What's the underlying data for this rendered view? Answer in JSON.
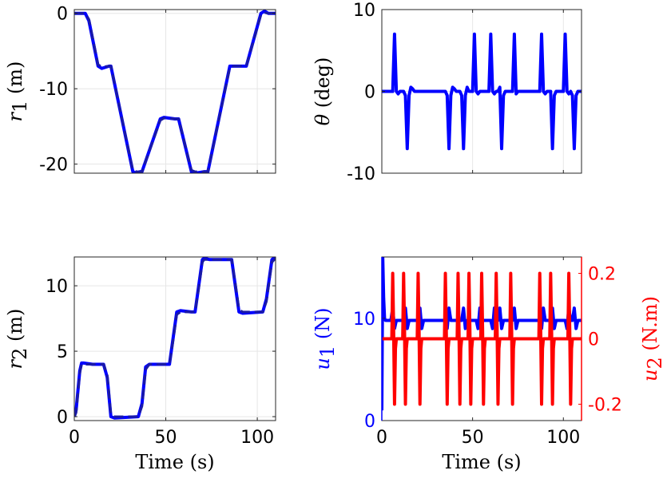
{
  "colors": {
    "primary": "#0000ff",
    "secondary": "#ff0000",
    "grid": "#e6e6e6",
    "axis": "#262626"
  },
  "chart_data": [
    {
      "id": "r1",
      "type": "line",
      "xlabel": "",
      "ylabel": {
        "sym": "r",
        "sub": "1",
        "unit": "(m)"
      },
      "xlim": [
        0,
        110
      ],
      "ylim": [
        -21.2,
        0.5
      ],
      "xticks": [
        0,
        50,
        100
      ],
      "xtick_labels_shown": false,
      "yticks": [
        -20,
        -10,
        0
      ],
      "ytick_labels": [
        "-20",
        "-10",
        "0"
      ],
      "grid": true,
      "series": [
        {
          "style": "solid",
          "x": [
            0,
            6,
            8,
            13,
            15,
            19,
            20,
            32,
            34,
            36,
            37,
            47,
            49,
            55,
            57,
            64,
            66,
            71,
            73,
            85,
            87,
            92,
            94,
            102,
            104,
            106,
            110
          ],
          "y": [
            0,
            0,
            -1,
            -7,
            -7.3,
            -7,
            -7,
            -21,
            -21.2,
            -21,
            -21,
            -14,
            -13.8,
            -14,
            -14,
            -21,
            -21.2,
            -21,
            -21,
            -7,
            -7,
            -7,
            -7,
            0,
            0.3,
            0,
            0
          ]
        },
        {
          "style": "dashed",
          "x": [
            0,
            6,
            8,
            13,
            15,
            19,
            20,
            32,
            34,
            36,
            37,
            47,
            49,
            55,
            57,
            64,
            66,
            71,
            73,
            85,
            87,
            92,
            94,
            102,
            104,
            106,
            110
          ],
          "y": [
            0,
            0,
            -0.8,
            -6.8,
            -7.1,
            -7,
            -7,
            -20.8,
            -21,
            -21,
            -21,
            -14.2,
            -13.9,
            -14,
            -14,
            -20.8,
            -21,
            -21,
            -21,
            -7.2,
            -7,
            -7,
            -7,
            -0.2,
            0.1,
            0,
            0
          ]
        }
      ]
    },
    {
      "id": "theta",
      "type": "line",
      "xlabel": "",
      "ylabel": {
        "sym": "θ",
        "sub": "",
        "unit": "(deg)"
      },
      "xlim": [
        0,
        110
      ],
      "ylim": [
        -10,
        10
      ],
      "xticks": [
        0,
        50,
        100
      ],
      "xtick_labels_shown": false,
      "yticks": [
        -10,
        0,
        10
      ],
      "ytick_labels": [
        "-10",
        "0",
        "10"
      ],
      "grid": true,
      "series": [
        {
          "style": "solid",
          "x": [
            0,
            6,
            7,
            8,
            9,
            10,
            11,
            12,
            13,
            14,
            15,
            16,
            17,
            18,
            19,
            20,
            35,
            36,
            37,
            38,
            39,
            40,
            41,
            42,
            43,
            44,
            45,
            46,
            47,
            48,
            49,
            50,
            51,
            52,
            53,
            54,
            55,
            56,
            57,
            58,
            59,
            60,
            61,
            62,
            63,
            64,
            65,
            66,
            67,
            68,
            69,
            70,
            71,
            72,
            73,
            74,
            75,
            76,
            77,
            87,
            88,
            89,
            90,
            91,
            92,
            93,
            94,
            95,
            96,
            97,
            98,
            99,
            100,
            101,
            102,
            103,
            104,
            105,
            106,
            107,
            108,
            110
          ],
          "y": [
            0,
            0,
            7,
            0,
            -0.3,
            0,
            0,
            0,
            -0.5,
            -7,
            -0.5,
            0.5,
            0.3,
            0,
            0,
            0,
            0,
            -0.5,
            -7,
            -0.5,
            0.5,
            0.3,
            0,
            0,
            0,
            -0.5,
            -7,
            -0.5,
            0.5,
            0,
            0,
            0,
            7,
            0,
            -0.3,
            0,
            0,
            0,
            0,
            0,
            0,
            7,
            0,
            -0.3,
            0,
            0,
            0.5,
            -7,
            -0.5,
            0,
            0,
            0,
            0,
            0,
            7,
            -0.3,
            0,
            0,
            0,
            0,
            7,
            0,
            -0.3,
            0,
            0,
            0,
            -7,
            -0.5,
            0,
            0,
            0,
            0,
            0,
            7,
            0,
            -0.3,
            0,
            -0.5,
            -7,
            -0.5,
            0,
            0
          ]
        }
      ]
    },
    {
      "id": "r2",
      "type": "line",
      "xlabel": "Time (s)",
      "ylabel": {
        "sym": "r",
        "sub": "2",
        "unit": "(m)"
      },
      "xlim": [
        0,
        110
      ],
      "ylim": [
        -0.3,
        12.2
      ],
      "xticks": [
        0,
        50,
        100
      ],
      "xtick_labels": [
        "0",
        "50",
        "100"
      ],
      "yticks": [
        0,
        5,
        10
      ],
      "ytick_labels": [
        "0",
        "5",
        "10"
      ],
      "grid": true,
      "series": [
        {
          "style": "solid",
          "x": [
            0,
            1,
            3,
            4,
            5,
            10,
            12,
            16,
            18,
            20,
            22,
            35,
            37,
            39,
            41,
            52,
            54,
            56,
            58,
            64,
            66,
            68,
            70,
            71,
            74,
            86,
            88,
            90,
            92,
            103,
            105,
            108,
            110
          ],
          "y": [
            0,
            0.5,
            3.5,
            4.1,
            4.1,
            4,
            4,
            4,
            3,
            0,
            -0.1,
            0,
            1,
            3.8,
            4,
            4,
            6,
            8,
            8.1,
            8,
            8,
            10,
            12,
            12.1,
            12,
            12,
            10,
            8,
            7.9,
            8,
            9,
            12,
            12.2
          ]
        },
        {
          "style": "dashed",
          "x": [
            0,
            1,
            3,
            4,
            5,
            10,
            12,
            16,
            18,
            20,
            22,
            35,
            37,
            39,
            41,
            52,
            54,
            56,
            58,
            64,
            66,
            68,
            70,
            71,
            74,
            86,
            88,
            90,
            92,
            103,
            105,
            108,
            110
          ],
          "y": [
            0,
            0.3,
            3.3,
            4,
            4,
            4,
            4,
            4,
            3.2,
            0.2,
            0,
            0,
            0.8,
            3.6,
            4,
            4,
            5.8,
            7.8,
            8,
            8,
            8,
            9.8,
            11.8,
            12,
            12,
            12,
            10.2,
            8.2,
            8,
            8,
            8.8,
            11.8,
            12.1
          ]
        }
      ]
    },
    {
      "id": "u",
      "type": "line",
      "xlabel": "Time (s)",
      "ylabel": {
        "sym": "u",
        "sub": "1",
        "unit": "(N)"
      },
      "ylabel2": {
        "sym": "u",
        "sub": "2",
        "unit": "(N.m)"
      },
      "xlim": [
        0,
        110
      ],
      "ylim": [
        0,
        16
      ],
      "ylim2": [
        -0.25,
        0.25
      ],
      "xticks": [
        0,
        50,
        100
      ],
      "xtick_labels": [
        "0",
        "50",
        "100"
      ],
      "yticks": [
        0,
        10
      ],
      "ytick_labels": [
        "0",
        "10"
      ],
      "yticks2": [
        -0.2,
        0,
        0.2
      ],
      "ytick_labels2": [
        "-0.2",
        "0",
        "0.2"
      ],
      "grid": false,
      "series": [
        {
          "axis": "left",
          "color": "primary",
          "x": [
            0,
            0.5,
            1,
            1.5,
            2,
            3,
            5,
            6,
            7,
            8,
            9,
            12,
            13,
            14,
            15,
            16,
            20,
            21,
            22,
            23,
            35,
            36,
            37,
            38,
            39,
            44,
            45,
            46,
            47,
            48,
            52,
            53,
            54,
            55,
            60,
            61,
            62,
            63,
            64,
            65,
            66,
            67,
            68,
            72,
            73,
            74,
            75,
            76,
            87,
            88,
            89,
            90,
            91,
            93,
            94,
            95,
            96,
            101,
            102,
            103,
            104,
            105,
            106,
            107,
            108,
            109,
            110
          ],
          "y": [
            1,
            16,
            12,
            10,
            9.8,
            9.8,
            9.8,
            11,
            9,
            9.8,
            9.8,
            9.8,
            11,
            9,
            9.8,
            9.8,
            9.8,
            11,
            9,
            9.8,
            9.8,
            9,
            11,
            9.8,
            9.8,
            9.8,
            11,
            9,
            9.8,
            9.8,
            9.8,
            9,
            11,
            9.8,
            9.8,
            9,
            11,
            9.8,
            9.8,
            11,
            9,
            9.8,
            9.8,
            9.8,
            11,
            9,
            9.8,
            9.8,
            9.8,
            9,
            11,
            9.8,
            9.8,
            9.8,
            11,
            9,
            9.8,
            9.8,
            9,
            11,
            9.8,
            9.8,
            11,
            9,
            9.8,
            9.8,
            9.8
          ]
        },
        {
          "axis": "right",
          "color": "secondary",
          "x": [
            0,
            5.5,
            6,
            6.5,
            7,
            7.5,
            8,
            9,
            11.5,
            12,
            12.5,
            13,
            13.5,
            14,
            15,
            19.5,
            20,
            20.5,
            21,
            21.5,
            22,
            23,
            34.5,
            35,
            35.5,
            36,
            36.5,
            37,
            38,
            41.5,
            42,
            42.5,
            43,
            43.5,
            44,
            45,
            47.5,
            48,
            48.5,
            49,
            49.5,
            50,
            51,
            54.5,
            55,
            55.5,
            56,
            56.5,
            57,
            58,
            62.5,
            63,
            63.5,
            64,
            64.5,
            65,
            66,
            70.5,
            71,
            71.5,
            72,
            72.5,
            73,
            74,
            86.5,
            87,
            87.5,
            88,
            88.5,
            89,
            90,
            92.5,
            93,
            93.5,
            94,
            94.5,
            95,
            96,
            102.5,
            103,
            103.5,
            104,
            104.5,
            105,
            106,
            110
          ],
          "y": [
            0,
            0,
            0.2,
            0.03,
            -0.2,
            -0.03,
            0,
            0,
            0,
            0.2,
            0.03,
            -0.2,
            -0.03,
            0,
            0,
            0,
            0.2,
            0.03,
            -0.2,
            -0.03,
            0,
            0,
            0,
            0.2,
            0.03,
            -0.2,
            -0.03,
            0,
            0,
            0,
            0.2,
            0.03,
            -0.2,
            -0.03,
            0,
            0,
            0,
            0.2,
            0.03,
            -0.2,
            -0.03,
            0,
            0,
            0,
            0.2,
            0.03,
            -0.2,
            -0.03,
            0,
            0,
            0,
            0.2,
            0.03,
            -0.2,
            -0.03,
            0,
            0,
            0,
            0.2,
            0.03,
            -0.2,
            -0.03,
            0,
            0,
            0,
            0.2,
            0.03,
            -0.2,
            -0.03,
            0,
            0,
            0,
            0.2,
            0.03,
            -0.2,
            -0.03,
            0,
            0,
            0,
            0.2,
            0.03,
            -0.2,
            -0.03,
            0,
            0,
            0
          ]
        }
      ]
    }
  ]
}
